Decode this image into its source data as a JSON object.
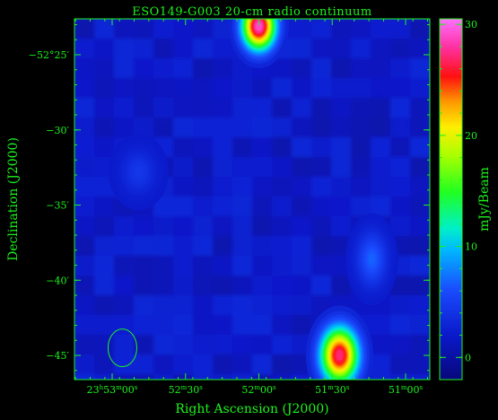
{
  "chart_data": {
    "type": "heatmap",
    "title": "ESO149-G003  20-cm radio continuum",
    "xlabel": "Right Ascension (J2000)",
    "ylabel": "Declination (J2000)",
    "colorbar_label": "mJy/Beam",
    "x_ticks": [
      {
        "h": "23",
        "m": "53",
        "s": "00",
        "minutes_from_23h51m": 2.0
      },
      {
        "m": "52",
        "s": "30",
        "minutes_from_23h51m": 1.5
      },
      {
        "m": "52",
        "s": "00",
        "minutes_from_23h51m": 1.0
      },
      {
        "m": "51",
        "s": "30",
        "minutes_from_23h51m": 0.5
      },
      {
        "m": "51",
        "s": "00",
        "minutes_from_23h51m": 0.0
      }
    ],
    "y_ticks": [
      {
        "label": "−52°25′",
        "arcmin": -25
      },
      {
        "label": "−30′",
        "arcmin": -30
      },
      {
        "label": "−35′",
        "arcmin": -35
      },
      {
        "label": "−40′",
        "arcmin": -40
      },
      {
        "label": "−45′",
        "arcmin": -45
      }
    ],
    "colorbar_ticks": [
      0,
      10,
      20,
      30
    ],
    "colorbar_range": [
      -2,
      30.5
    ],
    "background_level": 2,
    "sources": [
      {
        "name": "top-source",
        "ra_min": 1.0,
        "dec_arcmin": -23.1,
        "peak": 30,
        "sigma_ra": 0.08,
        "sigma_dec": 1.1
      },
      {
        "name": "bottom-source",
        "ra_min": 0.45,
        "dec_arcmin": -45.0,
        "peak": 28,
        "sigma_ra": 0.09,
        "sigma_dec": 1.3
      },
      {
        "name": "right-source",
        "ra_min": 0.23,
        "dec_arcmin": -38.6,
        "peak": 7,
        "sigma_ra": 0.07,
        "sigma_dec": 1.2
      },
      {
        "name": "left-source",
        "ra_min": 1.82,
        "dec_arcmin": -32.8,
        "peak": 4.5,
        "sigma_ra": 0.08,
        "sigma_dec": 1.0
      }
    ],
    "beam": {
      "ra_min": 1.93,
      "dec_arcmin": -44.5
    }
  }
}
